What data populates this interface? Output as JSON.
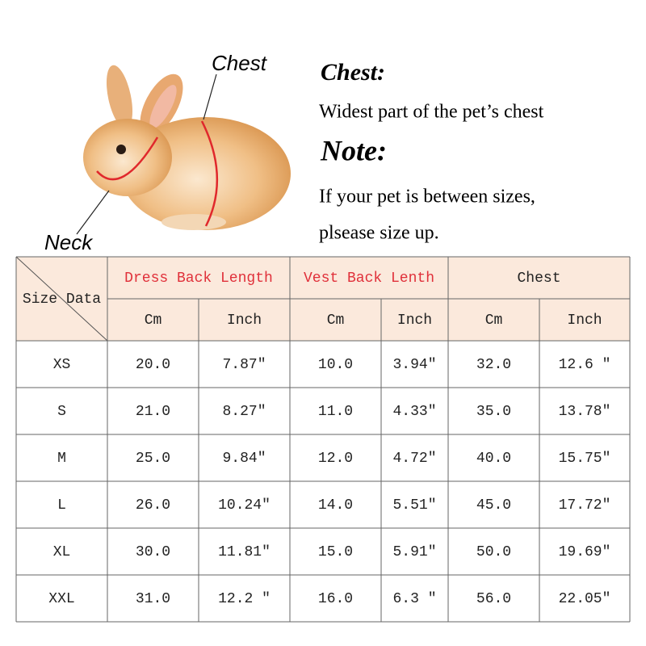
{
  "annotations": {
    "chest_label": "Chest",
    "neck_label": "Neck"
  },
  "notes": {
    "chest_title": "Chest:",
    "chest_text": "Widest part of the pet’s chest",
    "note_title": "Note:",
    "note_text_1": "If your pet is between sizes,",
    "note_text_2": "plsease size up."
  },
  "table": {
    "corner": "Size Data",
    "groups": [
      "Dress Back Length",
      "Vest Back Lenth",
      "Chest"
    ],
    "units": [
      "Cm",
      "Inch",
      "Cm",
      "Inch",
      "Cm",
      "Inch"
    ],
    "rows": [
      [
        "XS",
        "20.0",
        "7.87″",
        "10.0",
        "3.94″",
        "32.0",
        "12.6 ″"
      ],
      [
        "S",
        "21.0",
        "8.27″",
        "11.0",
        "4.33″",
        "35.0",
        "13.78″"
      ],
      [
        "M",
        "25.0",
        "9.84″",
        "12.0",
        "4.72″",
        "40.0",
        "15.75″"
      ],
      [
        "L",
        "26.0",
        "10.24″",
        "14.0",
        "5.51″",
        "45.0",
        "17.72″"
      ],
      [
        "XL",
        "30.0",
        "11.81″",
        "15.0",
        "5.91″",
        "50.0",
        "19.69″"
      ],
      [
        "XXL",
        "31.0",
        "12.2 ″",
        "16.0",
        "6.3 ″",
        "56.0",
        "22.05″"
      ]
    ]
  }
}
